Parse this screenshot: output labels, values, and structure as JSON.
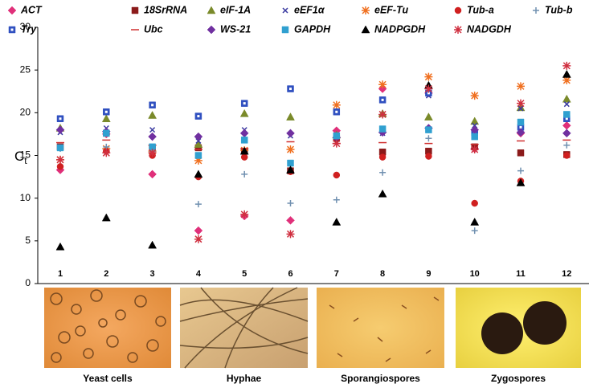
{
  "chart_data": {
    "type": "scatter",
    "ylabel": "C",
    "ylabel_sub": "t",
    "categories": [
      "1",
      "2",
      "3",
      "4",
      "5",
      "6",
      "7",
      "8",
      "9",
      "10",
      "11",
      "12"
    ],
    "ylim": [
      0,
      30
    ],
    "yticks": [
      0,
      5,
      10,
      15,
      20,
      25,
      30
    ],
    "series": [
      {
        "name": "ACT",
        "color": "#e0307a",
        "marker": "diamond",
        "values": [
          13.3,
          17.5,
          12.8,
          6.2,
          7.9,
          7.4,
          17.9,
          22.8,
          22.3,
          15.8,
          17.6,
          18.5
        ]
      },
      {
        "name": "18SrRNA",
        "color": "#8b1a1a",
        "marker": "square",
        "values": [
          16.0,
          17.6,
          15.8,
          15.9,
          15.5,
          13.2,
          17.0,
          15.4,
          15.5,
          16.0,
          15.3,
          15.1
        ]
      },
      {
        "name": "eIF-1A",
        "color": "#7a8a2a",
        "marker": "triangle",
        "values": [
          18.2,
          19.3,
          19.7,
          16.3,
          19.9,
          19.5,
          17.4,
          19.9,
          19.5,
          19.0,
          20.6,
          21.6
        ]
      },
      {
        "name": "eEF1α",
        "color": "#3a3aa0",
        "marker": "x",
        "values": [
          17.7,
          18.2,
          18.0,
          16.7,
          18.0,
          17.3,
          17.2,
          17.6,
          22.0,
          18.5,
          20.5,
          21.0
        ]
      },
      {
        "name": "eEF-Tu",
        "color": "#f07020",
        "marker": "asterisk",
        "values": [
          14.5,
          15.8,
          15.5,
          14.4,
          15.6,
          15.7,
          20.9,
          23.3,
          24.2,
          22.0,
          23.1,
          23.8
        ]
      },
      {
        "name": "Tub-a",
        "color": "#d02020",
        "marker": "circle",
        "values": [
          13.7,
          15.5,
          15.0,
          12.5,
          14.8,
          13.1,
          12.7,
          14.8,
          14.9,
          9.4,
          12.0,
          15.0
        ]
      },
      {
        "name": "Tub-b",
        "color": "#7090b0",
        "marker": "plus",
        "values": [
          15.8,
          16.0,
          15.5,
          9.3,
          12.8,
          9.4,
          9.8,
          13.0,
          17.0,
          6.2,
          13.2,
          16.2
        ]
      },
      {
        "name": "Try",
        "color": "#3050c0",
        "marker": "square-dot",
        "values": [
          19.3,
          20.1,
          20.9,
          19.6,
          21.1,
          22.8,
          20.1,
          21.5,
          22.3,
          17.7,
          18.3,
          19.3
        ]
      },
      {
        "name": "Ubc",
        "color": "#d03030",
        "marker": "dash",
        "values": [
          16.5,
          16.8,
          16.2,
          15.7,
          15.8,
          16.6,
          16.4,
          16.5,
          16.4,
          16.3,
          16.7,
          16.8
        ]
      },
      {
        "name": "WS-21",
        "color": "#7030a0",
        "marker": "diamond",
        "values": [
          18.0,
          17.8,
          17.2,
          17.2,
          17.6,
          17.6,
          17.1,
          17.7,
          18.2,
          18.0,
          17.7,
          17.6
        ]
      },
      {
        "name": "GAPDH",
        "color": "#30a0d0",
        "marker": "square",
        "values": [
          15.9,
          17.6,
          16.0,
          15.0,
          16.8,
          14.1,
          17.3,
          18.1,
          18.0,
          17.2,
          18.9,
          19.8
        ]
      },
      {
        "name": "NADPGDH",
        "color": "#000000",
        "marker": "triangle",
        "values": [
          4.3,
          7.7,
          4.5,
          12.8,
          15.5,
          13.3,
          7.2,
          10.5,
          23.2,
          7.2,
          11.8,
          24.5
        ]
      },
      {
        "name": "NADGDH",
        "color": "#d03040",
        "marker": "asterisk",
        "values": [
          14.5,
          15.3,
          15.3,
          5.2,
          8.1,
          5.8,
          16.4,
          19.8,
          22.8,
          15.7,
          21.1,
          25.5
        ]
      }
    ],
    "panels": [
      "Yeast  cells",
      "Hyphae",
      "Sporangiospores",
      "Zygospores"
    ]
  }
}
